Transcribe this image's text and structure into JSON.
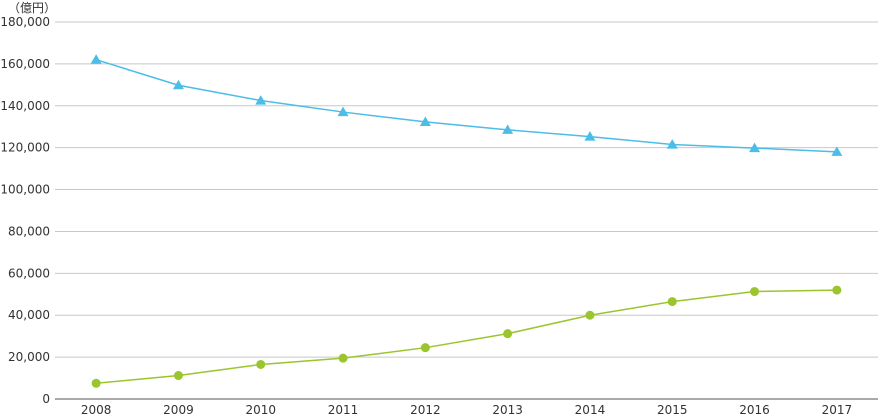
{
  "chart_data": {
    "type": "line",
    "unit_label": "（億円）",
    "x": [
      "2008",
      "2009",
      "2010",
      "2011",
      "2012",
      "2013",
      "2014",
      "2015",
      "2016",
      "2017"
    ],
    "ylim": [
      0,
      180000
    ],
    "y_ticks": [
      "0",
      "20,000",
      "40,000",
      "60,000",
      "80,000",
      "100,000",
      "120,000",
      "140,000",
      "160,000",
      "180,000"
    ],
    "y_tick_values": [
      0,
      20000,
      40000,
      60000,
      80000,
      100000,
      120000,
      140000,
      160000,
      180000
    ],
    "grid": true,
    "series": [
      {
        "marker": "triangle",
        "color": "#4bbde7",
        "values": [
          162000,
          149800,
          142500,
          137000,
          132300,
          128500,
          125300,
          121500,
          119800,
          118000
        ]
      },
      {
        "marker": "circle",
        "color": "#9bc52d",
        "values": [
          7500,
          11200,
          16500,
          19500,
          24500,
          31200,
          40000,
          46500,
          51300,
          52000
        ]
      }
    ]
  }
}
